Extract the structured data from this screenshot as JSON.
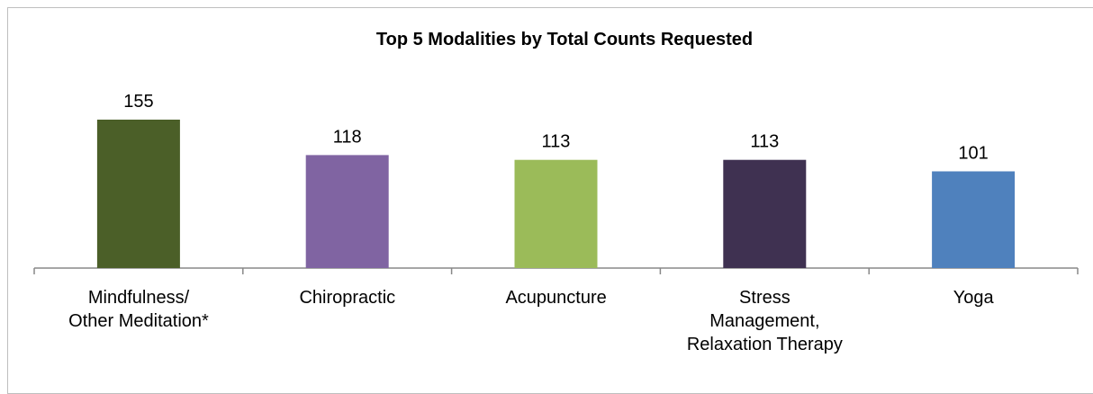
{
  "chart_data": {
    "type": "bar",
    "title": "Top 5 Modalities by Total Counts Requested",
    "categories": [
      "Mindfulness/\nOther Meditation*",
      "Chiropractic",
      "Acupuncture",
      "Stress\nManagement,\nRelaxation Therapy",
      "Yoga"
    ],
    "values": [
      155,
      118,
      113,
      113,
      101
    ],
    "colors": [
      "#4b5f28",
      "#8064a2",
      "#9bbb59",
      "#3f3151",
      "#4f81bd"
    ]
  }
}
